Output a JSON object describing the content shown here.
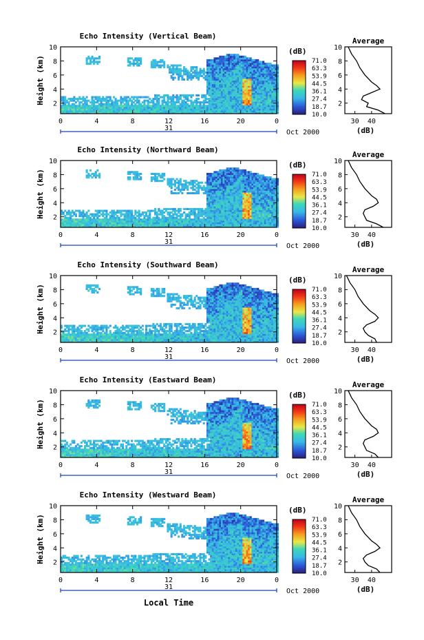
{
  "figure": {
    "bottom_xlabel": "Local Time",
    "date_label": "Oct 2000",
    "day_label": "31"
  },
  "chart_data": [
    {
      "type": "heatmap",
      "title": "Echo Intensity (Vertical Beam)",
      "xlabel": "",
      "ylabel": "Height (km)",
      "xlim": [
        0,
        24
      ],
      "ylim": [
        0.5,
        10
      ],
      "x_ticks": [
        "0",
        "4",
        "8",
        "12",
        "16",
        "20",
        "0"
      ],
      "y_ticks": [
        "2",
        "4",
        "6",
        "8",
        "10"
      ],
      "colorbar": {
        "unit": "(dB)",
        "ticks": [
          "71.0",
          "63.3",
          "53.9",
          "44.5",
          "36.1",
          "27.4",
          "18.7",
          "10.0"
        ],
        "range": [
          10.0,
          71.0
        ]
      },
      "average_profile": {
        "title": "Average",
        "xlabel": "(dB)",
        "x_ticks": [
          "30",
          "40"
        ],
        "xlim": [
          24,
          52
        ],
        "height_km": [
          0.5,
          1.0,
          1.5,
          2.0,
          2.5,
          3.0,
          3.5,
          4.0,
          4.5,
          5.0,
          6.0,
          7.0,
          8.0,
          9.0,
          10.0
        ],
        "db": [
          48,
          44,
          37,
          38,
          34,
          35,
          40,
          45,
          43,
          40,
          36,
          33,
          31,
          28,
          26
        ]
      }
    },
    {
      "type": "heatmap",
      "title": "Echo Intensity (Northward Beam)",
      "xlabel": "",
      "ylabel": "Height (km)",
      "xlim": [
        0,
        24
      ],
      "ylim": [
        0.5,
        10
      ],
      "x_ticks": [
        "0",
        "4",
        "8",
        "12",
        "16",
        "20",
        "0"
      ],
      "y_ticks": [
        "2",
        "4",
        "6",
        "8",
        "10"
      ],
      "colorbar": {
        "unit": "(dB)",
        "ticks": [
          "71.0",
          "63.3",
          "53.9",
          "44.5",
          "36.1",
          "27.4",
          "18.7",
          "10.0"
        ],
        "range": [
          10.0,
          71.0
        ]
      },
      "average_profile": {
        "title": "Average",
        "xlabel": "(dB)",
        "x_ticks": [
          "30",
          "40"
        ],
        "xlim": [
          24,
          52
        ],
        "height_km": [
          0.5,
          1.0,
          1.5,
          2.0,
          2.5,
          3.0,
          3.5,
          4.0,
          4.5,
          5.0,
          6.0,
          7.0,
          8.0,
          9.0,
          10.0
        ],
        "db": [
          47,
          43,
          37,
          36,
          35,
          36,
          41,
          44,
          43,
          40,
          36,
          33,
          31,
          28,
          26
        ]
      }
    },
    {
      "type": "heatmap",
      "title": "Echo Intensity (Southward Beam)",
      "xlabel": "",
      "ylabel": "Height (km)",
      "xlim": [
        0,
        24
      ],
      "ylim": [
        0.5,
        10
      ],
      "x_ticks": [
        "0",
        "4",
        "8",
        "12",
        "16",
        "20",
        "0"
      ],
      "y_ticks": [
        "2",
        "4",
        "6",
        "8",
        "10"
      ],
      "colorbar": {
        "unit": "(dB)",
        "ticks": [
          "71.0",
          "63.3",
          "53.9",
          "44.5",
          "36.1",
          "27.4",
          "18.7",
          "10.0"
        ],
        "range": [
          10.0,
          71.0
        ]
      },
      "average_profile": {
        "title": "Average",
        "xlabel": "(dB)",
        "x_ticks": [
          "30",
          "40"
        ],
        "xlim": [
          24,
          52
        ],
        "height_km": [
          0.5,
          1.0,
          1.5,
          2.0,
          2.5,
          3.0,
          3.5,
          4.0,
          4.5,
          5.0,
          6.0,
          7.0,
          8.0,
          9.0,
          10.0
        ],
        "db": [
          43,
          42,
          38,
          36,
          35,
          37,
          42,
          44,
          42,
          39,
          35,
          32,
          30,
          27,
          25
        ]
      }
    },
    {
      "type": "heatmap",
      "title": "Echo Intensity (Eastward Beam)",
      "xlabel": "",
      "ylabel": "Height (km)",
      "xlim": [
        0,
        24
      ],
      "ylim": [
        0.5,
        10
      ],
      "x_ticks": [
        "0",
        "4",
        "8",
        "12",
        "16",
        "20",
        "0"
      ],
      "y_ticks": [
        "2",
        "4",
        "6",
        "8",
        "10"
      ],
      "colorbar": {
        "unit": "(dB)",
        "ticks": [
          "71.0",
          "63.3",
          "53.9",
          "44.5",
          "36.1",
          "27.4",
          "18.7",
          "10.0"
        ],
        "range": [
          10.0,
          71.0
        ]
      },
      "average_profile": {
        "title": "Average",
        "xlabel": "(dB)",
        "x_ticks": [
          "30",
          "40"
        ],
        "xlim": [
          24,
          52
        ],
        "height_km": [
          0.5,
          1.0,
          1.5,
          2.0,
          2.5,
          3.0,
          3.5,
          4.0,
          4.5,
          5.0,
          6.0,
          7.0,
          8.0,
          9.0,
          10.0
        ],
        "db": [
          44,
          42,
          37,
          36,
          35,
          36,
          41,
          44,
          43,
          40,
          36,
          33,
          31,
          28,
          26
        ]
      }
    },
    {
      "type": "heatmap",
      "title": "Echo Intensity (Westward Beam)",
      "xlabel": "",
      "ylabel": "Height (km)",
      "xlim": [
        0,
        24
      ],
      "ylim": [
        0.5,
        10
      ],
      "x_ticks": [
        "0",
        "4",
        "8",
        "12",
        "16",
        "20",
        "0"
      ],
      "y_ticks": [
        "2",
        "4",
        "6",
        "8",
        "10"
      ],
      "colorbar": {
        "unit": "(dB)",
        "ticks": [
          "71.0",
          "63.3",
          "53.9",
          "44.5",
          "36.1",
          "27.4",
          "18.7",
          "10.0"
        ],
        "range": [
          10.0,
          71.0
        ]
      },
      "average_profile": {
        "title": "Average",
        "xlabel": "(dB)",
        "x_ticks": [
          "30",
          "40"
        ],
        "xlim": [
          24,
          52
        ],
        "height_km": [
          0.5,
          1.0,
          1.5,
          2.0,
          2.5,
          3.0,
          3.5,
          4.0,
          4.5,
          5.0,
          6.0,
          7.0,
          8.0,
          9.0,
          10.0
        ],
        "db": [
          45,
          43,
          38,
          36,
          35,
          37,
          42,
          45,
          43,
          40,
          36,
          33,
          31,
          28,
          26
        ]
      }
    }
  ]
}
